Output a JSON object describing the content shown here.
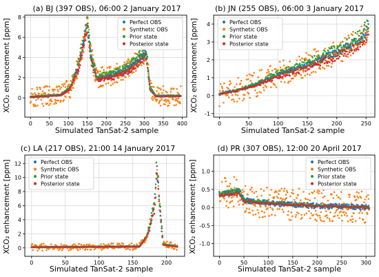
{
  "colors": {
    "perfect": "#1f77b4",
    "synthetic": "#ff7f0e",
    "prior": "#2ca02c",
    "posterior": "#d62728",
    "grid": "#d9d9d9"
  },
  "chart_data": [
    {
      "type": "scatter",
      "title": "(a) BJ (397 OBS), 06:00 2 January 2017",
      "xlabel": "Simulated TanSat-2 sample",
      "ylabel": "XCO₂ enhancement [ppm]",
      "xlim": [
        -15,
        412
      ],
      "ylim": [
        -1.9,
        8.2
      ],
      "xticks": [
        0,
        50,
        100,
        150,
        200,
        250,
        300,
        350,
        400
      ],
      "yticks": [
        0,
        2,
        4,
        6,
        8
      ],
      "legend": "top-right",
      "grid": true,
      "n": 397,
      "series": [
        {
          "name": "Perfect OBS",
          "key": "perfect"
        },
        {
          "name": "Synthetic OBS",
          "key": "synthetic"
        },
        {
          "name": "Prior state",
          "key": "prior"
        },
        {
          "name": "Posterior state",
          "key": "posterior"
        }
      ],
      "profile": [
        [
          0,
          0.1
        ],
        [
          80,
          0.3
        ],
        [
          105,
          1.0
        ],
        [
          125,
          3.0
        ],
        [
          140,
          5.5
        ],
        [
          150,
          7.8
        ],
        [
          158,
          4.5
        ],
        [
          175,
          2.0
        ],
        [
          220,
          2.3
        ],
        [
          260,
          3.0
        ],
        [
          290,
          4.0
        ],
        [
          305,
          4.5
        ],
        [
          315,
          1.0
        ],
        [
          330,
          0.2
        ],
        [
          397,
          0.2
        ]
      ],
      "noise": 1.0
    },
    {
      "type": "scatter",
      "title": "(b) JN (255 OBS), 06:00 3 January 2017",
      "xlabel": "Simulated TanSat-2 sample",
      "ylabel": "XCO₂ enhancement [ppm]",
      "xlim": [
        -10,
        265
      ],
      "ylim": [
        -1.2,
        4.5
      ],
      "xticks": [
        0,
        50,
        100,
        150,
        200,
        250
      ],
      "yticks": [
        -1,
        0,
        1,
        2,
        3,
        4
      ],
      "legend": "top-left",
      "grid": true,
      "n": 255,
      "series": [
        {
          "name": "Perfect OBS",
          "key": "perfect"
        },
        {
          "name": "Synthetic OBS",
          "key": "synthetic"
        },
        {
          "name": "Prior state",
          "key": "prior"
        },
        {
          "name": "Posterior state",
          "key": "posterior"
        }
      ],
      "profile": [
        [
          0,
          0.1
        ],
        [
          30,
          0.3
        ],
        [
          60,
          0.6
        ],
        [
          100,
          1.2
        ],
        [
          140,
          1.6
        ],
        [
          170,
          2.0
        ],
        [
          210,
          2.6
        ],
        [
          240,
          3.2
        ],
        [
          255,
          3.8
        ]
      ],
      "noise": 0.7
    },
    {
      "type": "scatter",
      "title": "(c) LA (217 OBS), 21:00 14 January 2017",
      "xlabel": "Simulated TanSat-2 sample",
      "ylabel": "XCO₂ enhancement [ppm]",
      "xlim": [
        -10,
        227
      ],
      "ylim": [
        -1.2,
        13.2
      ],
      "xticks": [
        0,
        50,
        100,
        150,
        200
      ],
      "yticks": [
        0,
        2,
        4,
        6,
        8,
        10,
        12
      ],
      "legend": "top-left",
      "grid": true,
      "n": 217,
      "series": [
        {
          "name": "Perfect OBS",
          "key": "perfect"
        },
        {
          "name": "Synthetic OBS",
          "key": "synthetic"
        },
        {
          "name": "Prior state",
          "key": "prior"
        },
        {
          "name": "Posterior state",
          "key": "posterior"
        }
      ],
      "profile": [
        [
          0,
          0.1
        ],
        [
          160,
          0.2
        ],
        [
          170,
          1.5
        ],
        [
          175,
          3.0
        ],
        [
          182,
          6.0
        ],
        [
          186,
          11.5
        ],
        [
          190,
          6.0
        ],
        [
          195,
          0.5
        ],
        [
          217,
          0.2
        ]
      ],
      "noise": 0.5
    },
    {
      "type": "scatter",
      "title": "(d) PR (307 OBS), 12:00 20 April 2017",
      "xlabel": "Simulated TanSat-2 sample",
      "ylabel": "XCO₂ enhancement [ppm]",
      "xlim": [
        -12,
        318
      ],
      "ylim": [
        -1.35,
        1.45
      ],
      "xticks": [
        0,
        50,
        100,
        150,
        200,
        250,
        300
      ],
      "yticks": [
        -1.0,
        -0.5,
        0.0,
        0.5,
        1.0
      ],
      "legend": "top-right",
      "grid": true,
      "n": 307,
      "series": [
        {
          "name": "Perfect OBS",
          "key": "perfect"
        },
        {
          "name": "Synthetic OBS",
          "key": "synthetic"
        },
        {
          "name": "Prior state",
          "key": "prior"
        },
        {
          "name": "Posterior state",
          "key": "posterior"
        }
      ],
      "profile": [
        [
          0,
          0.35
        ],
        [
          40,
          0.45
        ],
        [
          50,
          0.2
        ],
        [
          100,
          0.12
        ],
        [
          150,
          0.08
        ],
        [
          200,
          0.05
        ],
        [
          250,
          0.03
        ],
        [
          307,
          0.0
        ]
      ],
      "noise": 0.45
    }
  ]
}
